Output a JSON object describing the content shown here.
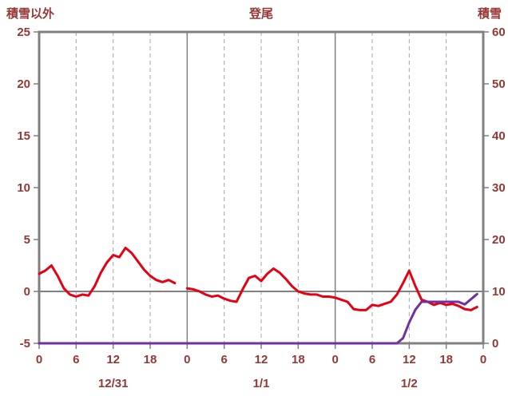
{
  "chart_data": {
    "type": "line",
    "title": "登尾",
    "left_axis": {
      "title": "積雪以外",
      "min": -5,
      "max": 25,
      "ticks": [
        25,
        20,
        15,
        10,
        5,
        0,
        -5
      ]
    },
    "right_axis": {
      "title": "積雪",
      "min": 0,
      "max": 60,
      "ticks": [
        60,
        50,
        40,
        30,
        20,
        10,
        0
      ]
    },
    "x_axis": {
      "hours_total": 72,
      "tick_hours": [
        0,
        6,
        12,
        18,
        24,
        30,
        36,
        42,
        48,
        54,
        60,
        66,
        72
      ],
      "tick_labels": [
        "0",
        "6",
        "12",
        "18",
        "0",
        "6",
        "12",
        "18",
        "0",
        "6",
        "12",
        "18",
        "0"
      ],
      "day_separators": [
        24,
        48
      ],
      "day_labels": [
        {
          "label": "12/31",
          "hour": 12
        },
        {
          "label": "1/1",
          "hour": 36
        },
        {
          "label": "1/2",
          "hour": 60
        }
      ]
    },
    "series": [
      {
        "name": "積雪以外",
        "axis": "left",
        "color": "#e60012",
        "values": [
          1.7,
          2.0,
          2.5,
          1.5,
          0.3,
          -0.3,
          -0.5,
          -0.3,
          -0.4,
          0.5,
          1.8,
          2.8,
          3.5,
          3.3,
          4.2,
          3.7,
          2.9,
          2.1,
          1.5,
          1.1,
          0.9,
          1.1,
          0.8,
          null,
          0.3,
          0.2,
          0.0,
          -0.3,
          -0.5,
          -0.4,
          -0.7,
          -0.9,
          -1.0,
          0.2,
          1.3,
          1.5,
          1.0,
          1.7,
          2.2,
          1.8,
          1.2,
          0.5,
          0.0,
          -0.2,
          -0.3,
          -0.3,
          -0.5,
          -0.5,
          -0.6,
          -0.8,
          -1.0,
          -1.7,
          -1.8,
          -1.8,
          -1.3,
          -1.4,
          -1.2,
          -1.0,
          -0.3,
          0.8,
          2.0,
          0.5,
          -0.8,
          -1.0,
          -1.3,
          -1.1,
          -1.3,
          -1.2,
          -1.4,
          -1.7,
          -1.8,
          -1.5
        ]
      },
      {
        "name": "積雪",
        "axis": "right",
        "color": "#7030a0",
        "values": [
          0,
          0,
          0,
          0,
          0,
          0,
          0,
          0,
          0,
          0,
          0,
          0,
          0,
          0,
          0,
          0,
          0,
          0,
          0,
          0,
          0,
          0,
          0,
          0,
          0,
          0,
          0,
          0,
          0,
          0,
          0,
          0,
          0,
          0,
          0,
          0,
          0,
          0,
          0,
          0,
          0,
          0,
          0,
          0,
          0,
          0,
          0,
          0,
          0,
          0,
          0,
          0,
          0,
          0,
          0,
          0,
          0,
          0,
          0,
          1,
          4,
          6.5,
          8,
          8,
          8,
          8,
          8,
          8,
          8,
          7.5,
          8.5,
          9.5
        ]
      }
    ],
    "colors": {
      "background": "#ffffff",
      "border": "#808080",
      "grid": "#a6a6a6",
      "zero_line": "#808080",
      "axis_text": "#953735"
    }
  }
}
